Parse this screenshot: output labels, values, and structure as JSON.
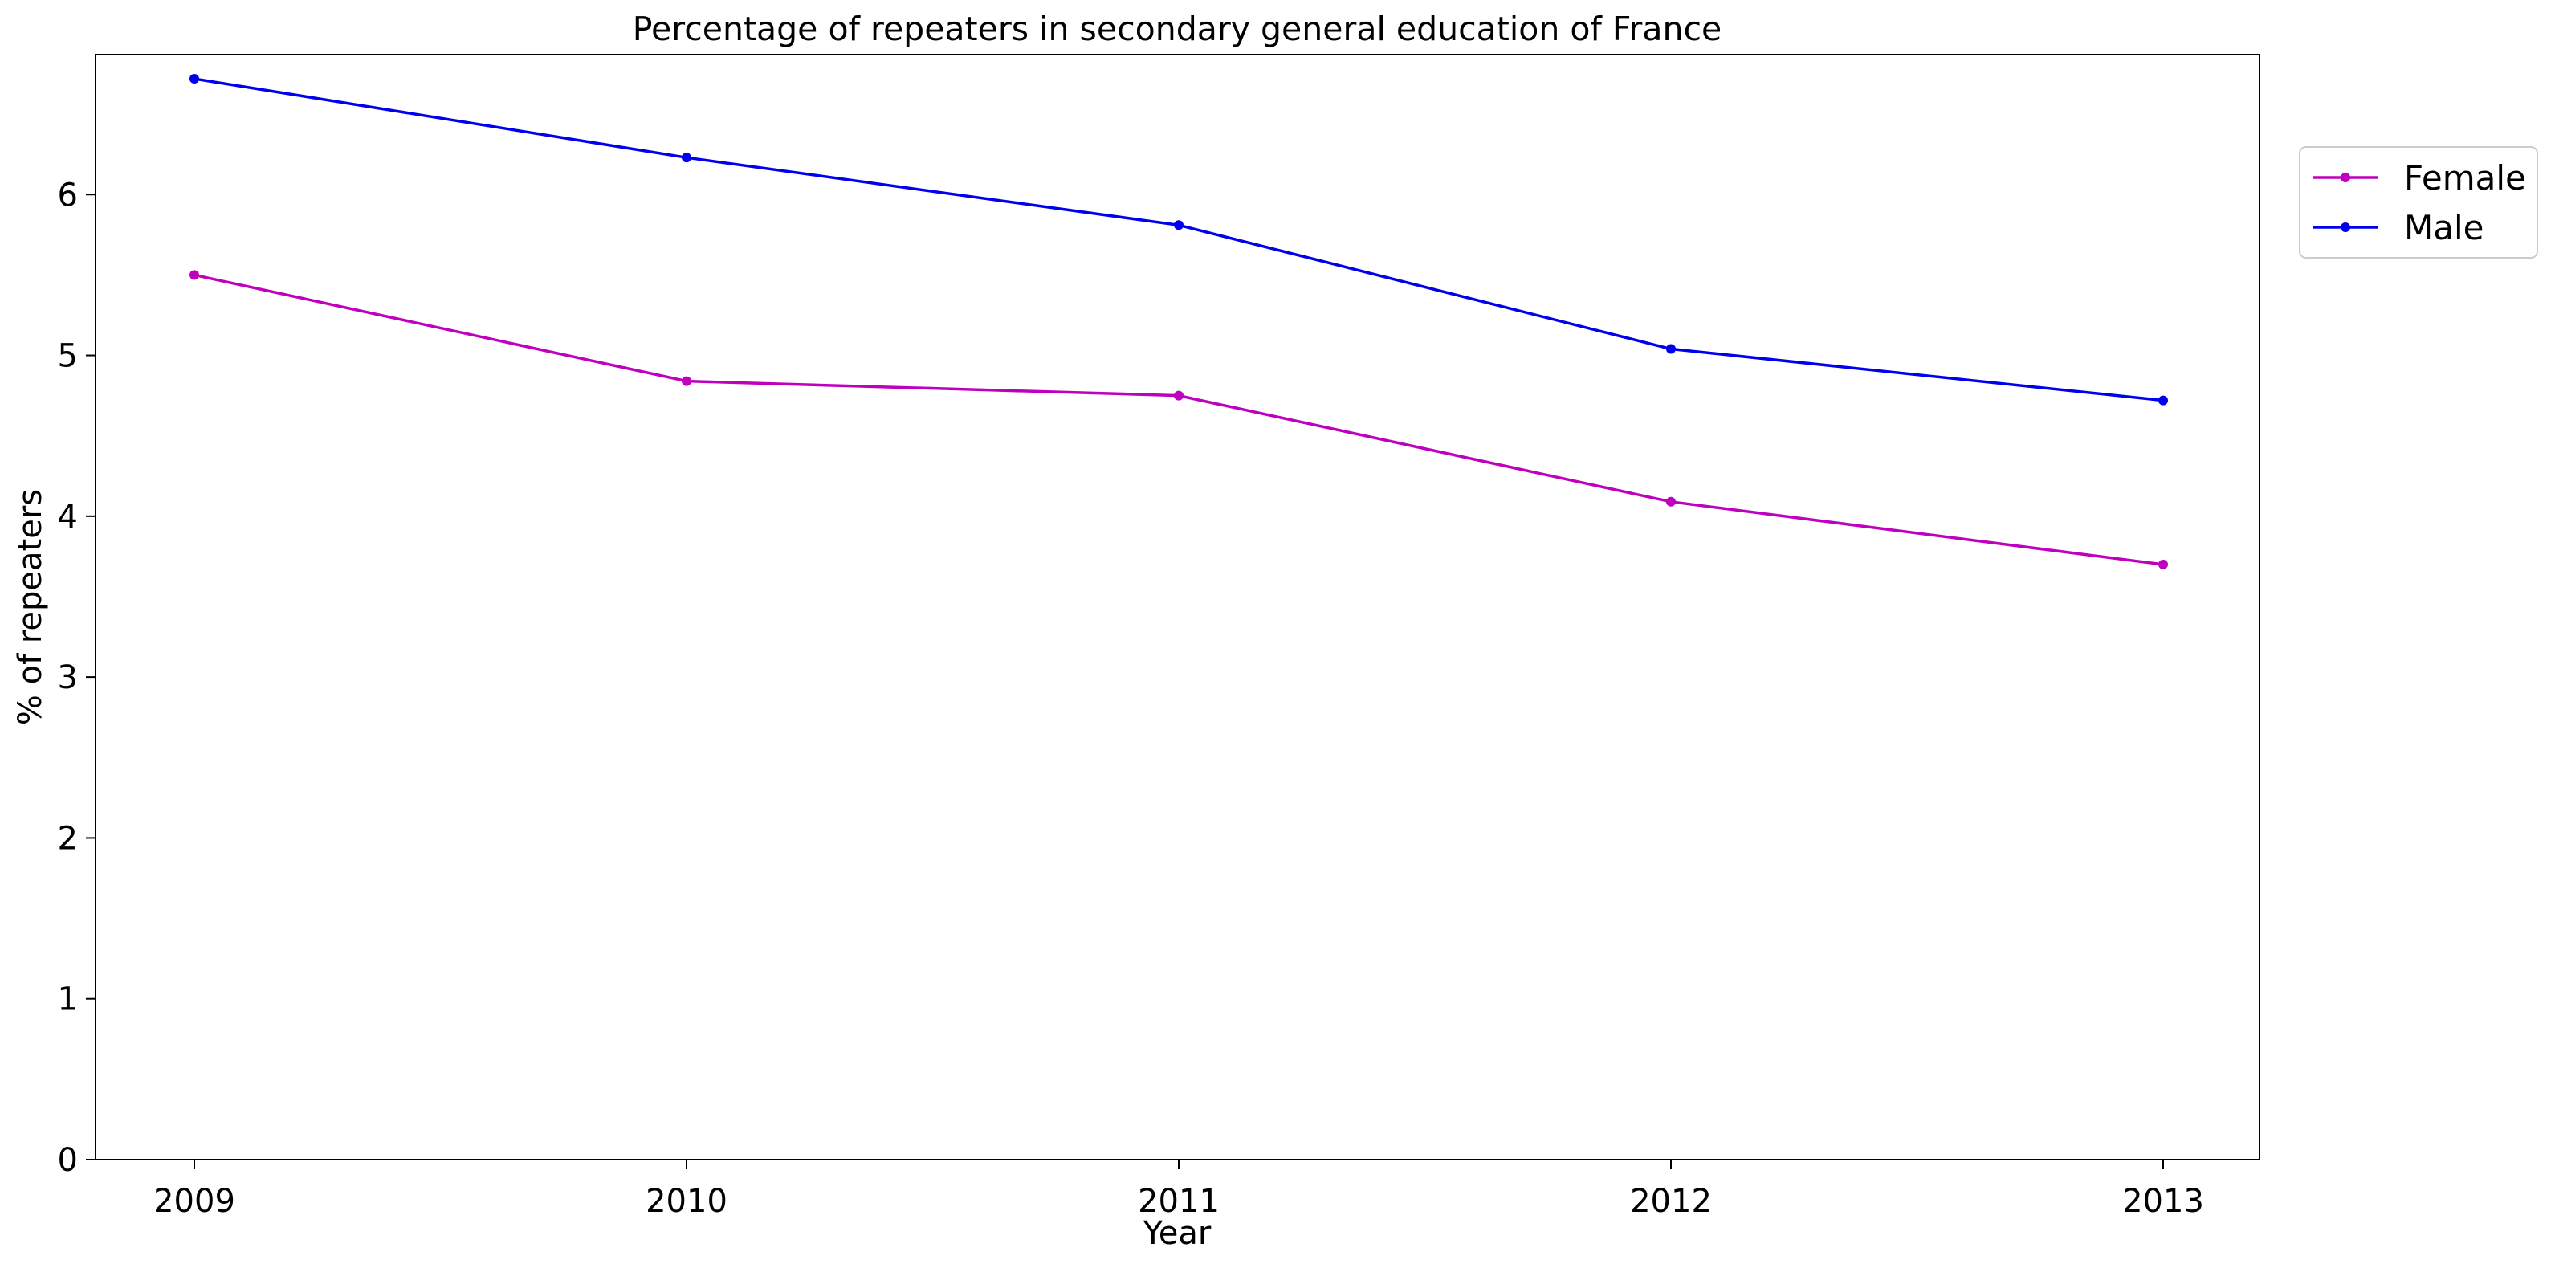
{
  "chart_data": {
    "type": "line",
    "title": "Percentage of repeaters in secondary general education of France",
    "xlabel": "Year",
    "ylabel": "% of repeaters",
    "x": [
      "2009",
      "2010",
      "2011",
      "2012",
      "2013"
    ],
    "ylim": [
      0,
      6.87
    ],
    "yticks": [
      "0",
      "1",
      "2",
      "3",
      "4",
      "5",
      "6"
    ],
    "grid": false,
    "legend_position": "upper right, outside plot",
    "series": [
      {
        "name": "Female",
        "color": "#bf00bf",
        "marker": "dot",
        "values": [
          5.5,
          4.84,
          4.75,
          4.09,
          3.7
        ]
      },
      {
        "name": "Male",
        "color": "#0000ee",
        "marker": "dot",
        "values": [
          6.72,
          6.23,
          5.81,
          5.04,
          4.72
        ]
      }
    ]
  }
}
